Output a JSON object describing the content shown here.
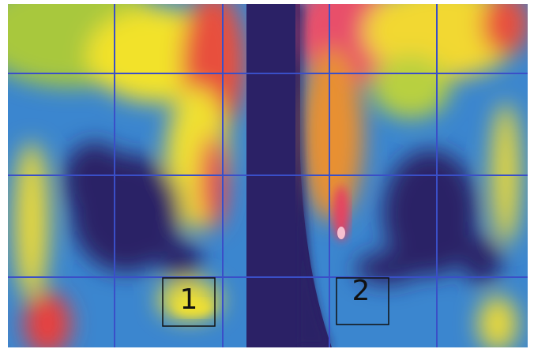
{
  "regions": [
    {
      "label": "1"
    },
    {
      "label": "2"
    }
  ]
}
